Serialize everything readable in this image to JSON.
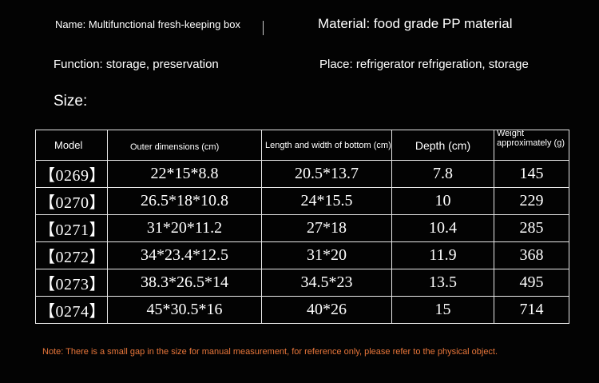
{
  "header": {
    "name": "Name: Multifunctional fresh-keeping box",
    "material": "Material: food grade PP material",
    "function": "Function: storage, preservation",
    "place": "Place: refrigerator refrigeration, storage",
    "size_label": "Size:"
  },
  "table": {
    "headers": {
      "model": "Model",
      "outer": "Outer dimensions (cm)",
      "bottom": "Length and width of bottom (cm)",
      "depth": "Depth (cm)",
      "weight": "Weight approximately (g)"
    },
    "rows": [
      {
        "model": "【0269】",
        "outer": "22*15*8.8",
        "bottom": "20.5*13.7",
        "depth": "7.8",
        "weight": "145"
      },
      {
        "model": "【0270】",
        "outer": "26.5*18*10.8",
        "bottom": "24*15.5",
        "depth": "10",
        "weight": "229"
      },
      {
        "model": "【0271】",
        "outer": "31*20*11.2",
        "bottom": "27*18",
        "depth": "10.4",
        "weight": "285"
      },
      {
        "model": "【0272】",
        "outer": "34*23.4*12.5",
        "bottom": "31*20",
        "depth": "11.9",
        "weight": "368"
      },
      {
        "model": "【0273】",
        "outer": "38.3*26.5*14",
        "bottom": "34.5*23",
        "depth": "13.5",
        "weight": "495"
      },
      {
        "model": "【0274】",
        "outer": "45*30.5*16",
        "bottom": "40*26",
        "depth": "15",
        "weight": "714"
      }
    ]
  },
  "note": "Note: There is a small gap in the size for manual measurement, for reference only, please refer to the physical object.",
  "colors": {
    "background": "#030303",
    "text": "#ffffff",
    "note": "#e8763a",
    "border": "#e8e8e8"
  }
}
